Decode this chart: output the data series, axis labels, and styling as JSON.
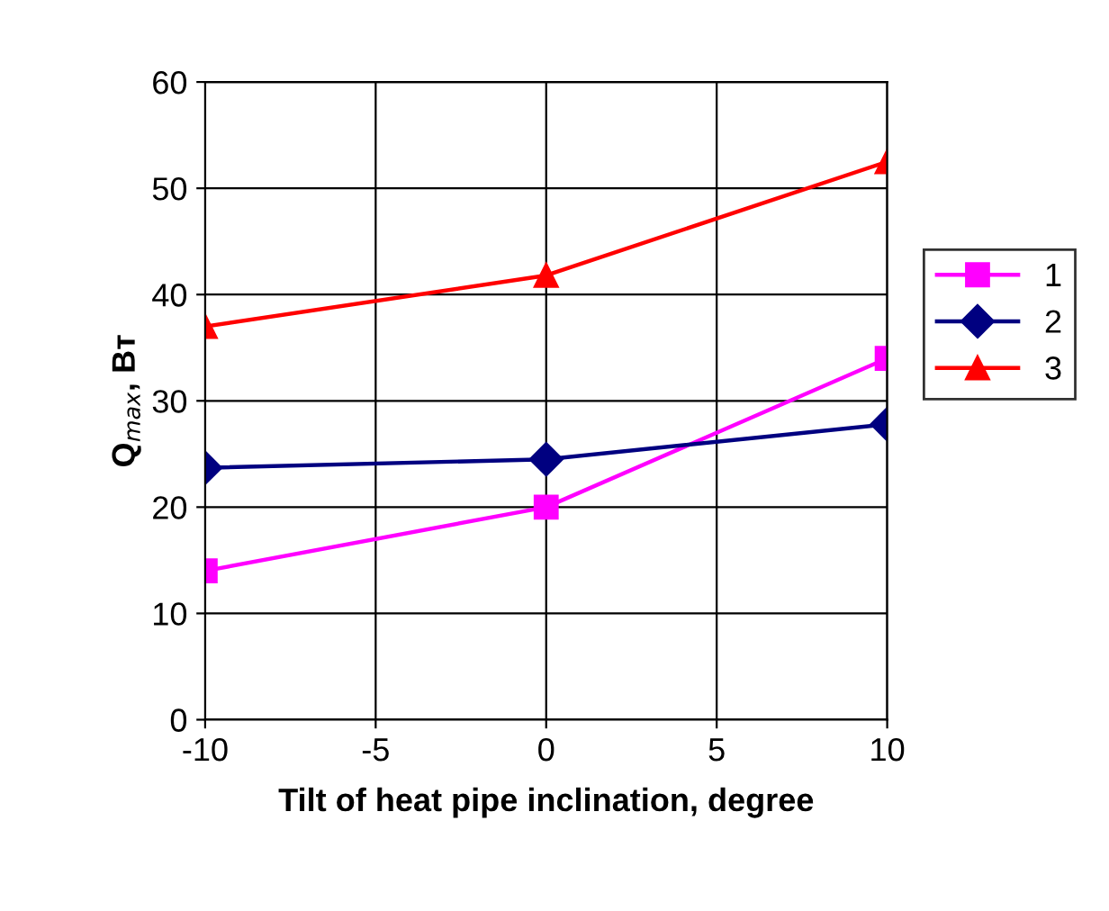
{
  "chart_data": {
    "type": "line",
    "xlabel": "Tilt of heat pipe inclination, degree",
    "ylabel": "Q$_{max}$, Вт",
    "x": [
      -10,
      0,
      10
    ],
    "series": [
      {
        "name": "1",
        "color": "#ff00ff",
        "values": [
          14,
          20,
          34
        ],
        "marker": "square"
      },
      {
        "name": "2",
        "color": "#000080",
        "values": [
          23.7,
          24.5,
          27.8
        ],
        "marker": "diamond"
      },
      {
        "name": "3",
        "color": "#ff0000",
        "values": [
          37,
          41.8,
          52.5
        ],
        "marker": "triangle"
      }
    ],
    "xlim": [
      -10,
      10
    ],
    "xticks": [
      -10,
      -5,
      0,
      5,
      10
    ],
    "ylim": [
      0,
      60
    ],
    "yticks": [
      0,
      10,
      20,
      30,
      40,
      50,
      60
    ],
    "grid": true,
    "legend": "right",
    "line_style": "solid"
  }
}
